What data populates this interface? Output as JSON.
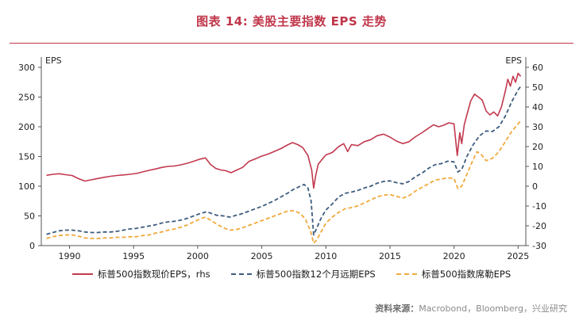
{
  "chart_data": {
    "type": "line",
    "title": "图表 14: 美股主要指数 EPS 走势",
    "legend_position": "bottom",
    "grid": false,
    "x_axis": {
      "min": 1987.8,
      "max": 2025.6,
      "ticks": [
        1990,
        1995,
        2000,
        2005,
        2010,
        2015,
        2020,
        2025
      ]
    },
    "left_axis": {
      "label": "EPS",
      "min": 0,
      "max": 300,
      "ticks": [
        0,
        50,
        100,
        150,
        200,
        250,
        300
      ]
    },
    "right_axis": {
      "label": "EPS",
      "min": -30,
      "max": 60,
      "ticks": [
        -30,
        -20,
        -10,
        0,
        10,
        20,
        30,
        40,
        50,
        60
      ]
    },
    "series": [
      {
        "name": "标普500指数现价EPS，rhs",
        "axis": "right",
        "color": "#c2394e",
        "style": "solid",
        "points": [
          [
            1988.2,
            5.5
          ],
          [
            1988.7,
            6.0
          ],
          [
            1989.2,
            6.3
          ],
          [
            1989.7,
            5.8
          ],
          [
            1990.2,
            5.4
          ],
          [
            1990.7,
            3.8
          ],
          [
            1991.2,
            2.6
          ],
          [
            1991.7,
            3.2
          ],
          [
            1992.2,
            3.9
          ],
          [
            1992.7,
            4.5
          ],
          [
            1993.2,
            5.0
          ],
          [
            1993.7,
            5.4
          ],
          [
            1994.2,
            5.7
          ],
          [
            1994.7,
            6.0
          ],
          [
            1995.2,
            6.4
          ],
          [
            1995.7,
            7.2
          ],
          [
            1996.2,
            8.0
          ],
          [
            1996.7,
            8.7
          ],
          [
            1997.2,
            9.5
          ],
          [
            1997.7,
            10.0
          ],
          [
            1998.2,
            10.2
          ],
          [
            1998.7,
            10.8
          ],
          [
            1999.2,
            11.6
          ],
          [
            1999.7,
            12.6
          ],
          [
            2000.2,
            13.7
          ],
          [
            2000.6,
            14.3
          ],
          [
            2001.0,
            11.0
          ],
          [
            2001.4,
            9.0
          ],
          [
            2001.8,
            8.2
          ],
          [
            2002.2,
            7.8
          ],
          [
            2002.6,
            6.8
          ],
          [
            2003.0,
            8.0
          ],
          [
            2003.5,
            9.5
          ],
          [
            2004.0,
            12.5
          ],
          [
            2004.5,
            13.8
          ],
          [
            2005.0,
            15.2
          ],
          [
            2005.5,
            16.2
          ],
          [
            2006.0,
            17.6
          ],
          [
            2006.5,
            19.0
          ],
          [
            2007.0,
            20.8
          ],
          [
            2007.4,
            22.0
          ],
          [
            2007.8,
            21.0
          ],
          [
            2008.2,
            19.5
          ],
          [
            2008.6,
            15.5
          ],
          [
            2008.9,
            8.0
          ],
          [
            2009.05,
            -1.0
          ],
          [
            2009.2,
            5.0
          ],
          [
            2009.4,
            11.0
          ],
          [
            2009.7,
            13.5
          ],
          [
            2010.0,
            15.8
          ],
          [
            2010.5,
            17.0
          ],
          [
            2011.0,
            20.0
          ],
          [
            2011.4,
            21.5
          ],
          [
            2011.7,
            17.5
          ],
          [
            2012.0,
            21.0
          ],
          [
            2012.5,
            20.5
          ],
          [
            2013.0,
            22.5
          ],
          [
            2013.5,
            23.5
          ],
          [
            2014.0,
            25.5
          ],
          [
            2014.5,
            26.3
          ],
          [
            2015.0,
            24.8
          ],
          [
            2015.5,
            22.8
          ],
          [
            2016.0,
            21.5
          ],
          [
            2016.5,
            22.5
          ],
          [
            2017.0,
            25.0
          ],
          [
            2017.5,
            27.0
          ],
          [
            2018.0,
            29.3
          ],
          [
            2018.4,
            31.0
          ],
          [
            2018.8,
            30.0
          ],
          [
            2019.2,
            30.8
          ],
          [
            2019.6,
            32.0
          ],
          [
            2020.0,
            31.5
          ],
          [
            2020.25,
            15.5
          ],
          [
            2020.45,
            27.0
          ],
          [
            2020.6,
            21.5
          ],
          [
            2020.8,
            31.0
          ],
          [
            2021.0,
            36.0
          ],
          [
            2021.3,
            43.0
          ],
          [
            2021.6,
            46.5
          ],
          [
            2021.9,
            45.0
          ],
          [
            2022.2,
            43.5
          ],
          [
            2022.5,
            38.0
          ],
          [
            2022.8,
            36.0
          ],
          [
            2023.1,
            37.5
          ],
          [
            2023.4,
            35.5
          ],
          [
            2023.7,
            40.0
          ],
          [
            2024.0,
            48.0
          ],
          [
            2024.2,
            54.0
          ],
          [
            2024.4,
            50.5
          ],
          [
            2024.6,
            55.5
          ],
          [
            2024.8,
            52.5
          ],
          [
            2025.0,
            57.0
          ],
          [
            2025.2,
            55.5
          ]
        ]
      },
      {
        "name": "标普500指数12个月远期EPS",
        "axis": "left",
        "color": "#3e5c7e",
        "style": "dashed",
        "points": [
          [
            1988.2,
            19
          ],
          [
            1988.7,
            22
          ],
          [
            1989.2,
            25
          ],
          [
            1989.7,
            26
          ],
          [
            1990.2,
            26
          ],
          [
            1990.7,
            25
          ],
          [
            1991.2,
            23
          ],
          [
            1991.7,
            22
          ],
          [
            1992.2,
            22
          ],
          [
            1992.7,
            23
          ],
          [
            1993.2,
            23
          ],
          [
            1993.7,
            24
          ],
          [
            1994.2,
            26
          ],
          [
            1994.7,
            28
          ],
          [
            1995.2,
            29
          ],
          [
            1995.7,
            31
          ],
          [
            1996.2,
            33
          ],
          [
            1996.7,
            35
          ],
          [
            1997.2,
            38
          ],
          [
            1997.7,
            40
          ],
          [
            1998.2,
            41
          ],
          [
            1998.7,
            43
          ],
          [
            1999.2,
            46
          ],
          [
            1999.7,
            50
          ],
          [
            2000.2,
            54
          ],
          [
            2000.7,
            57
          ],
          [
            2001.1,
            54
          ],
          [
            2001.5,
            51
          ],
          [
            2002.0,
            50
          ],
          [
            2002.5,
            48
          ],
          [
            2003.0,
            51
          ],
          [
            2003.5,
            54
          ],
          [
            2004.0,
            58
          ],
          [
            2004.5,
            62
          ],
          [
            2005.0,
            66
          ],
          [
            2005.5,
            71
          ],
          [
            2006.0,
            76
          ],
          [
            2006.5,
            82
          ],
          [
            2007.0,
            88
          ],
          [
            2007.5,
            95
          ],
          [
            2008.0,
            100
          ],
          [
            2008.3,
            103
          ],
          [
            2008.6,
            97
          ],
          [
            2008.85,
            75
          ],
          [
            2009.05,
            18
          ],
          [
            2009.3,
            30
          ],
          [
            2009.6,
            45
          ],
          [
            2010.0,
            60
          ],
          [
            2010.5,
            70
          ],
          [
            2011.0,
            82
          ],
          [
            2011.5,
            88
          ],
          [
            2012.0,
            90
          ],
          [
            2012.5,
            93
          ],
          [
            2013.0,
            97
          ],
          [
            2013.5,
            100
          ],
          [
            2014.0,
            105
          ],
          [
            2014.5,
            108
          ],
          [
            2015.0,
            109
          ],
          [
            2015.5,
            106
          ],
          [
            2016.0,
            104
          ],
          [
            2016.5,
            108
          ],
          [
            2017.0,
            116
          ],
          [
            2017.5,
            122
          ],
          [
            2018.0,
            130
          ],
          [
            2018.5,
            136
          ],
          [
            2019.0,
            138
          ],
          [
            2019.5,
            142
          ],
          [
            2020.0,
            141
          ],
          [
            2020.3,
            124
          ],
          [
            2020.6,
            128
          ],
          [
            2021.0,
            150
          ],
          [
            2021.5,
            170
          ],
          [
            2022.0,
            185
          ],
          [
            2022.5,
            193
          ],
          [
            2023.0,
            192
          ],
          [
            2023.5,
            200
          ],
          [
            2024.0,
            218
          ],
          [
            2024.5,
            242
          ],
          [
            2025.0,
            262
          ],
          [
            2025.2,
            268
          ]
        ]
      },
      {
        "name": "标普500指数席勒EPS",
        "axis": "left",
        "color": "#f0a93c",
        "style": "dashed",
        "points": [
          [
            1988.2,
            12
          ],
          [
            1988.7,
            15
          ],
          [
            1989.2,
            17
          ],
          [
            1989.7,
            18
          ],
          [
            1990.2,
            18
          ],
          [
            1990.7,
            16
          ],
          [
            1991.2,
            13
          ],
          [
            1991.7,
            12
          ],
          [
            1992.2,
            12
          ],
          [
            1992.7,
            13
          ],
          [
            1993.2,
            13
          ],
          [
            1993.7,
            14
          ],
          [
            1994.2,
            14
          ],
          [
            1994.7,
            15
          ],
          [
            1995.2,
            15
          ],
          [
            1995.7,
            17
          ],
          [
            1996.2,
            18
          ],
          [
            1996.7,
            21
          ],
          [
            1997.2,
            23
          ],
          [
            1997.7,
            26
          ],
          [
            1998.2,
            28
          ],
          [
            1998.7,
            31
          ],
          [
            1999.2,
            35
          ],
          [
            1999.7,
            40
          ],
          [
            2000.2,
            45
          ],
          [
            2000.6,
            48
          ],
          [
            2001.0,
            43
          ],
          [
            2001.5,
            36
          ],
          [
            2002.0,
            30
          ],
          [
            2002.5,
            26
          ],
          [
            2003.0,
            27
          ],
          [
            2003.5,
            30
          ],
          [
            2004.0,
            34
          ],
          [
            2004.5,
            38
          ],
          [
            2005.0,
            42
          ],
          [
            2005.5,
            46
          ],
          [
            2006.0,
            50
          ],
          [
            2006.5,
            54
          ],
          [
            2007.0,
            58
          ],
          [
            2007.5,
            59
          ],
          [
            2008.0,
            54
          ],
          [
            2008.4,
            45
          ],
          [
            2008.8,
            25
          ],
          [
            2009.05,
            4
          ],
          [
            2009.3,
            10
          ],
          [
            2009.6,
            22
          ],
          [
            2010.0,
            38
          ],
          [
            2010.5,
            48
          ],
          [
            2011.0,
            56
          ],
          [
            2011.5,
            62
          ],
          [
            2012.0,
            64
          ],
          [
            2012.5,
            67
          ],
          [
            2013.0,
            72
          ],
          [
            2013.5,
            77
          ],
          [
            2014.0,
            82
          ],
          [
            2014.5,
            85
          ],
          [
            2015.0,
            86
          ],
          [
            2015.5,
            83
          ],
          [
            2016.0,
            80
          ],
          [
            2016.5,
            84
          ],
          [
            2017.0,
            92
          ],
          [
            2017.5,
            98
          ],
          [
            2018.0,
            104
          ],
          [
            2018.5,
            110
          ],
          [
            2019.0,
            112
          ],
          [
            2019.5,
            114
          ],
          [
            2020.0,
            113
          ],
          [
            2020.3,
            96
          ],
          [
            2020.6,
            100
          ],
          [
            2021.0,
            120
          ],
          [
            2021.5,
            145
          ],
          [
            2021.8,
            158
          ],
          [
            2022.1,
            154
          ],
          [
            2022.5,
            143
          ],
          [
            2023.0,
            147
          ],
          [
            2023.5,
            158
          ],
          [
            2024.0,
            175
          ],
          [
            2024.5,
            192
          ],
          [
            2025.0,
            205
          ],
          [
            2025.2,
            210
          ]
        ]
      }
    ]
  },
  "footer": {
    "source_label": "资料来源：",
    "source_text": "Macrobond，Bloomberg，兴业研究"
  },
  "style": {
    "title_color": "#c0364a",
    "axis_color": "#555555",
    "tick_text_color": "#222222"
  }
}
